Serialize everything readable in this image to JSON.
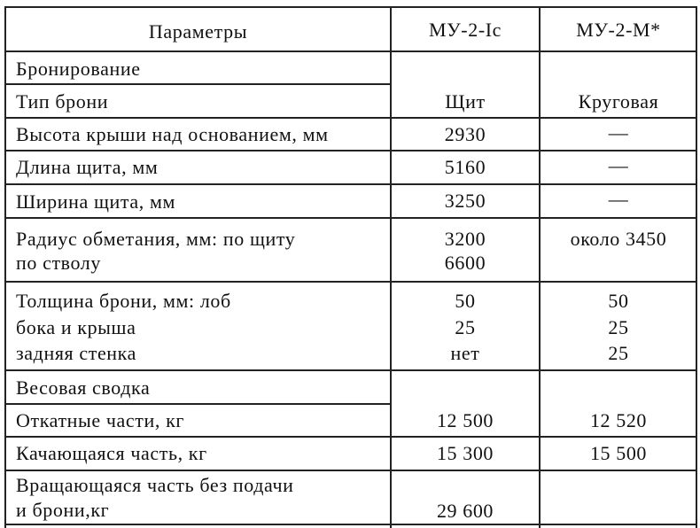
{
  "header": {
    "param": "Параметры",
    "col1": "МУ-2-Ic",
    "col2": "МУ-2-М*"
  },
  "rows": [
    {
      "label": "Бронирование"
    },
    {
      "label": "Тип брони",
      "v1": "Щит",
      "v2": "Круговая"
    },
    {
      "label": "Высота крыши над основанием, мм",
      "v1": "2930",
      "v2": "—"
    },
    {
      "label": "Длина щита, мм",
      "v1": "5160",
      "v2": "—"
    },
    {
      "label": "Ширина щита, мм",
      "v1": "3250",
      "v2": "—"
    },
    {
      "label": "Радиус обметания, мм: по щиту",
      "v1": "3200",
      "v2": "около 3450"
    },
    {
      "label": "по стволу",
      "v1": "6600"
    },
    {
      "label": "Толщина брони, мм: лоб",
      "v1": "50",
      "v2": "50"
    },
    {
      "label": "бока и крыша",
      "v1": "25",
      "v2": "25"
    },
    {
      "label": "задняя стенка",
      "v1": "нет",
      "v2": "25"
    },
    {
      "label": "Весовая сводка"
    },
    {
      "label": "Откатные части, кг",
      "v1": "12 500",
      "v2": "12 520"
    },
    {
      "label": "Качающаяся часть, кг",
      "v1": "15 300",
      "v2": "15 500"
    },
    {
      "label": "Вращающаяся часть без подачи"
    },
    {
      "label": "и брони,кг",
      "v1": "29 600"
    }
  ]
}
